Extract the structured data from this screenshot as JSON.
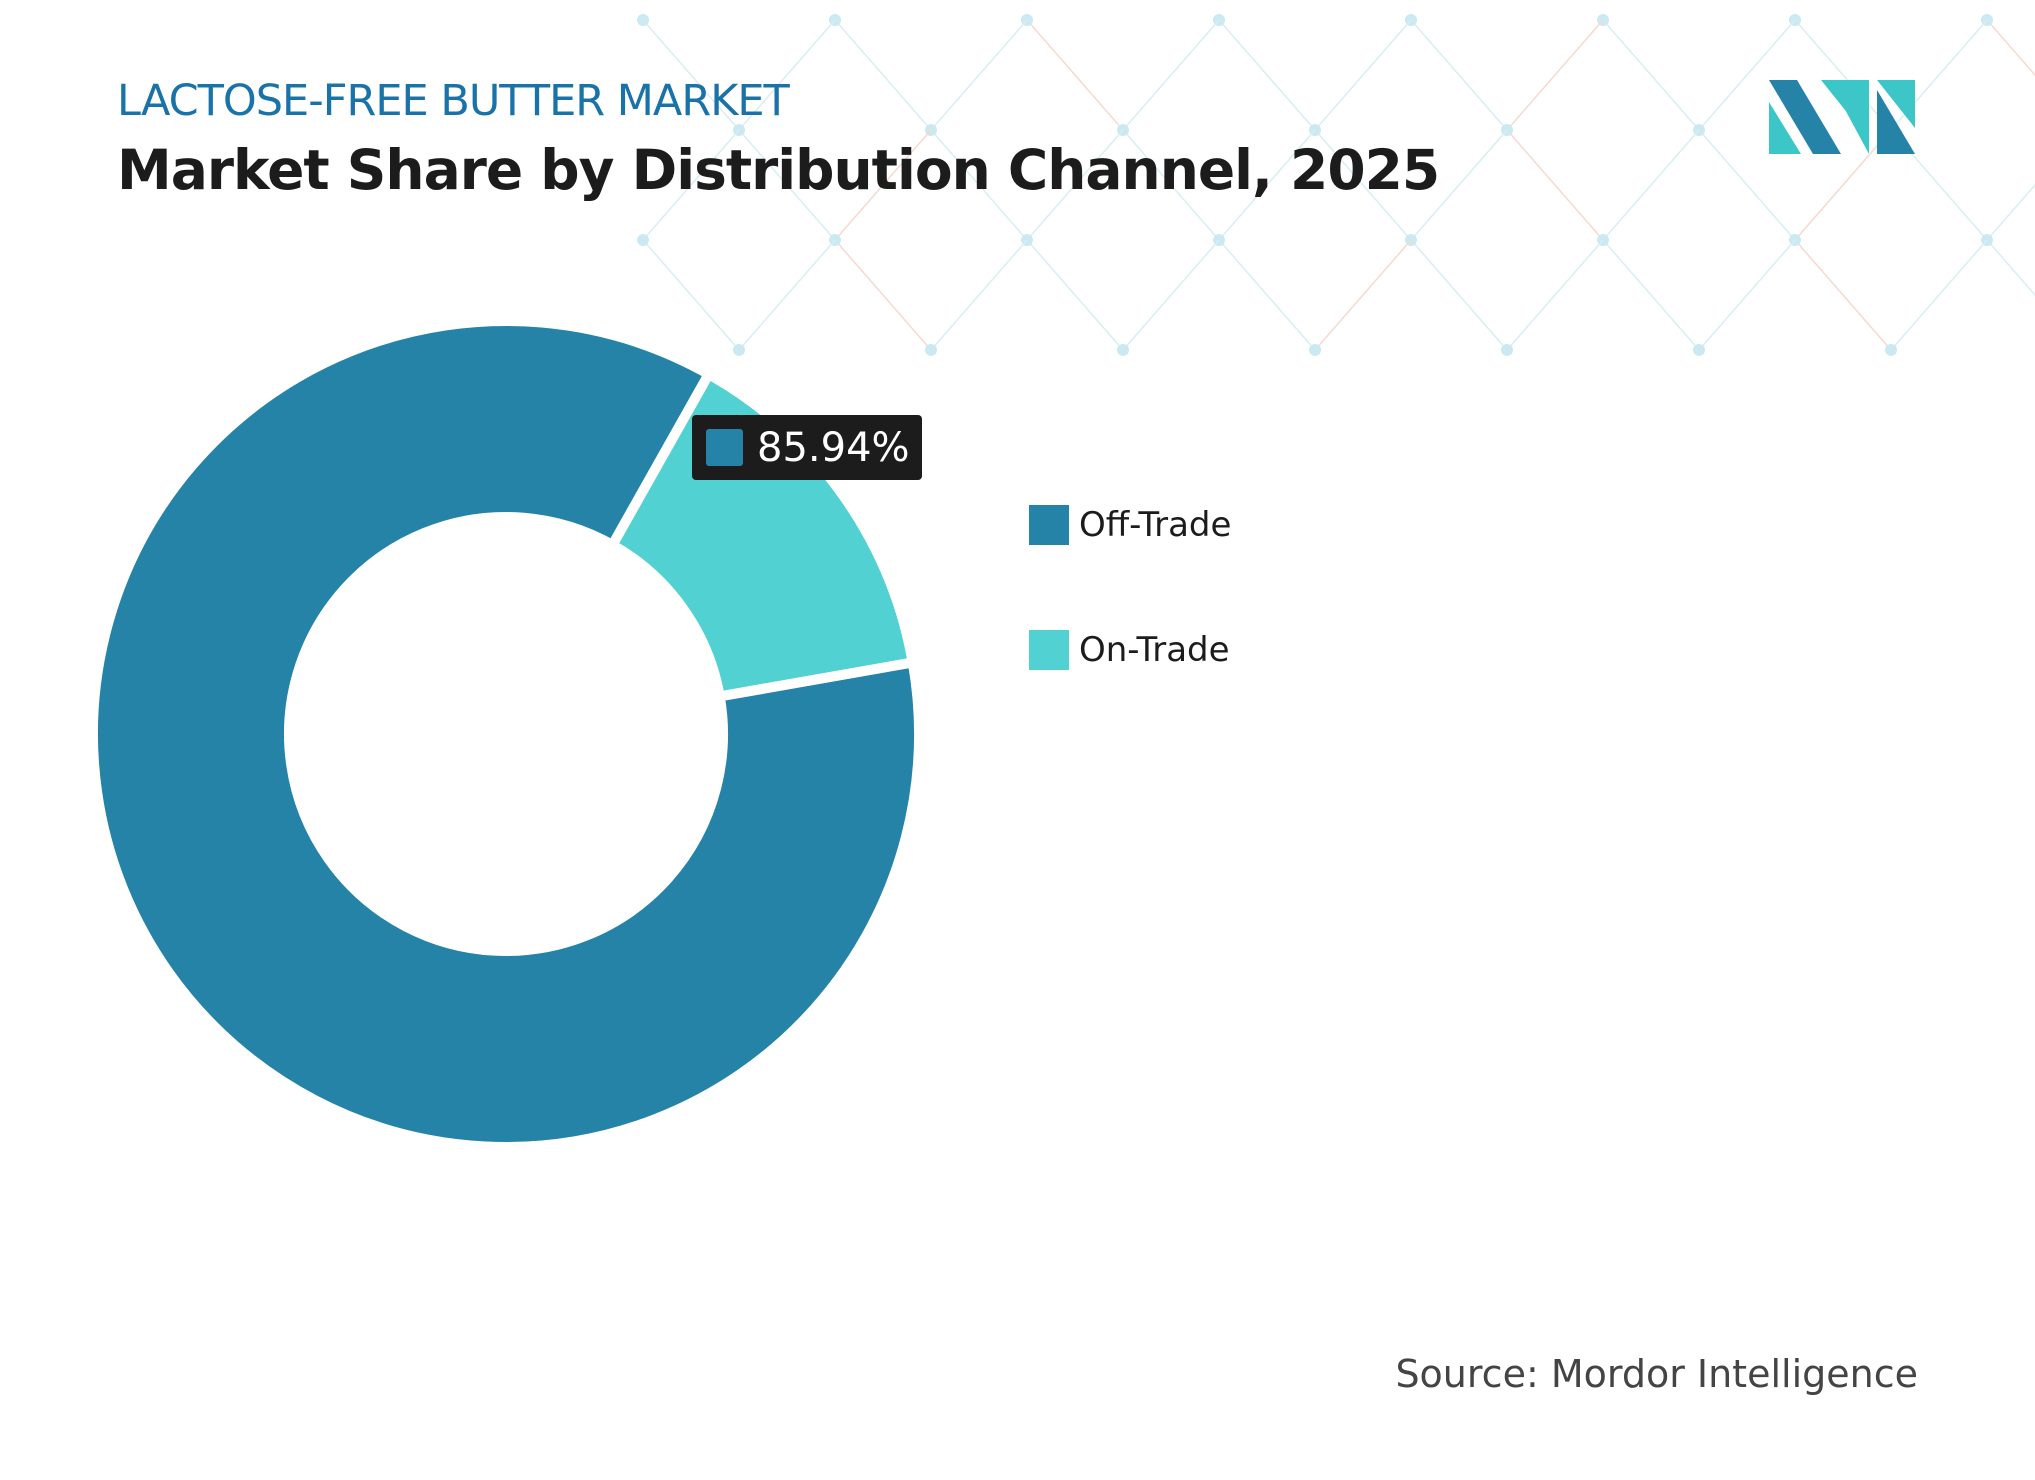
{
  "header": {
    "subtitle": "LACTOSE-FREE BUTTER MARKET",
    "title": "Market Share by Distribution Channel, 2025"
  },
  "chart_data": {
    "type": "pie",
    "variant": "donut",
    "categories": [
      "Off-Trade",
      "On-Trade"
    ],
    "values": [
      85.94,
      14.06
    ],
    "unit": "%",
    "colors": [
      "#2683a8",
      "#52d1d3"
    ],
    "data_label": "85.94%",
    "legend": "right"
  },
  "tooltip": {
    "text": "85.94%",
    "color": "#2683a8"
  },
  "source": "Source: Mordor Intelligence",
  "colors": {
    "subtitle": "#1a73a8",
    "title": "#1c1c1c",
    "logo_dark": "#2683a8",
    "logo_light": "#3cc6c8"
  }
}
